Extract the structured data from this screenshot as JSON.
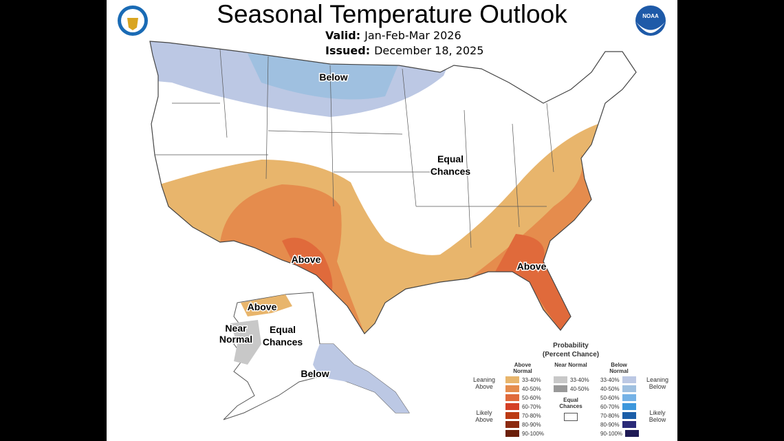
{
  "header": {
    "title": "Seasonal Temperature Outlook",
    "valid_label": "Valid:",
    "valid_value": "Jan-Feb-Mar 2026",
    "issued_label": "Issued:",
    "issued_value": "December 18, 2025"
  },
  "logos": {
    "left": "department-of-commerce-seal",
    "right": "noaa-logo",
    "right_text": "NOAA"
  },
  "map_labels": {
    "below": "Below",
    "equal1": "Equal",
    "equal2": "Chances",
    "above_sw": "Above",
    "above_se": "Above",
    "ak_above": "Above",
    "ak_near1": "Near",
    "ak_near2": "Normal",
    "ak_equal1": "Equal",
    "ak_equal2": "Chances",
    "ak_below": "Below"
  },
  "legend": {
    "title1": "Probability",
    "title2": "(Percent Chance)",
    "above_header": "Above Normal",
    "near_header": "Near Normal",
    "below_header": "Below Normal",
    "leaning_above": "Leaning Above",
    "likely_above": "Likely Above",
    "leaning_below": "Leaning Below",
    "likely_below": "Likely Below",
    "equal_chances": "Equal Chances",
    "above": [
      {
        "range": "33-40%",
        "color": "#e8b56c"
      },
      {
        "range": "40-50%",
        "color": "#e58c4d"
      },
      {
        "range": "50-60%",
        "color": "#e06a3b"
      },
      {
        "range": "60-70%",
        "color": "#d43f25"
      },
      {
        "range": "70-80%",
        "color": "#bb3a12"
      },
      {
        "range": "80-90%",
        "color": "#8c2a10"
      },
      {
        "range": "90-100%",
        "color": "#6b1f0a"
      }
    ],
    "near": [
      {
        "range": "33-40%",
        "color": "#c8c8c8"
      },
      {
        "range": "40-50%",
        "color": "#999999"
      }
    ],
    "below": [
      {
        "range": "33-40%",
        "color": "#bcc8e4"
      },
      {
        "range": "40-50%",
        "color": "#9fc0e0"
      },
      {
        "range": "50-60%",
        "color": "#75b2e6"
      },
      {
        "range": "60-70%",
        "color": "#3d97dc"
      },
      {
        "range": "70-80%",
        "color": "#1b5ea8"
      },
      {
        "range": "80-90%",
        "color": "#2a2a78"
      },
      {
        "range": "90-100%",
        "color": "#1e1a55"
      }
    ]
  }
}
